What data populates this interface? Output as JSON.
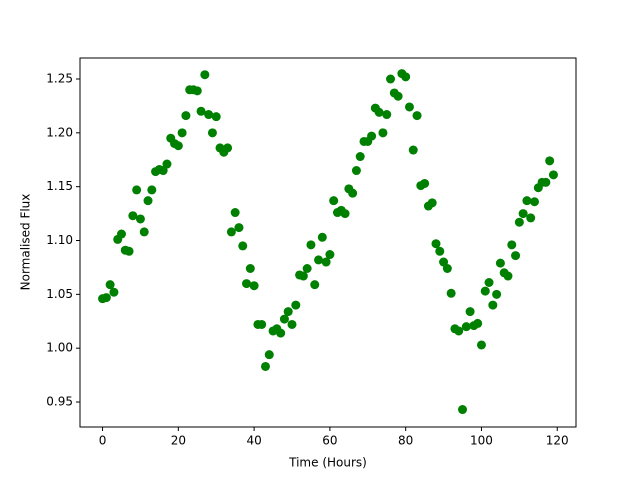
{
  "chart_data": {
    "type": "scatter",
    "x_label": "Time (Hours)",
    "y_label": "Normalised Flux",
    "x": [
      0,
      1,
      2,
      3,
      4,
      5,
      6,
      7,
      8,
      9,
      10,
      11,
      12,
      13,
      14,
      15,
      16,
      17,
      18,
      19,
      20,
      21,
      22,
      23,
      24,
      25,
      26,
      27,
      28,
      29,
      30,
      31,
      32,
      33,
      34,
      35,
      36,
      37,
      38,
      39,
      40,
      41,
      42,
      43,
      44,
      45,
      46,
      47,
      48,
      49,
      50,
      51,
      52,
      53,
      54,
      55,
      56,
      57,
      58,
      59,
      60,
      61,
      62,
      63,
      64,
      65,
      66,
      67,
      68,
      69,
      70,
      71,
      72,
      73,
      74,
      75,
      76,
      77,
      78,
      79,
      80,
      81,
      82,
      83,
      84,
      85,
      86,
      87,
      88,
      89,
      90,
      91,
      92,
      93,
      94,
      95,
      96,
      97,
      98,
      99,
      100,
      101,
      102,
      103,
      104,
      105,
      106,
      107,
      108,
      109,
      110,
      111,
      112,
      113,
      114,
      115,
      116,
      117,
      118,
      119
    ],
    "series": [
      {
        "color": "#008000",
        "values": [
          1.046,
          1.047,
          1.059,
          1.052,
          1.101,
          1.106,
          1.091,
          1.09,
          1.123,
          1.147,
          1.12,
          1.108,
          1.137,
          1.147,
          1.164,
          1.166,
          1.165,
          1.171,
          1.195,
          1.19,
          1.188,
          1.2,
          1.216,
          1.24,
          1.24,
          1.239,
          1.22,
          1.254,
          1.217,
          1.2,
          1.215,
          1.186,
          1.182,
          1.186,
          1.108,
          1.126,
          1.112,
          1.095,
          1.06,
          1.074,
          1.058,
          1.022,
          1.022,
          0.983,
          0.994,
          1.016,
          1.018,
          1.014,
          1.027,
          1.034,
          1.022,
          1.04,
          1.068,
          1.067,
          1.074,
          1.096,
          1.059,
          1.082,
          1.103,
          1.08,
          1.087,
          1.137,
          1.126,
          1.128,
          1.125,
          1.148,
          1.144,
          1.165,
          1.178,
          1.192,
          1.192,
          1.197,
          1.223,
          1.219,
          1.2,
          1.217,
          1.25,
          1.237,
          1.234,
          1.255,
          1.252,
          1.224,
          1.184,
          1.216,
          1.151,
          1.153,
          1.132,
          1.135,
          1.097,
          1.09,
          1.08,
          1.074,
          1.051,
          1.018,
          1.016,
          0.943,
          1.02,
          1.034,
          1.021,
          1.023,
          1.003,
          1.053,
          1.061,
          1.04,
          1.05,
          1.079,
          1.07,
          1.067,
          1.096,
          1.086,
          1.117,
          1.125,
          1.137,
          1.121,
          1.136,
          1.149,
          1.154,
          1.154,
          1.174,
          1.161
        ]
      }
    ],
    "xlim": [
      -5.95,
      124.95
    ],
    "ylim": [
      0.9268,
      1.2695
    ],
    "xticks": [
      0,
      20,
      40,
      60,
      80,
      100,
      120
    ],
    "yticks": [
      0.95,
      {
        "value": 1.0,
        "label": "1.00"
      },
      1.05,
      {
        "value": 1.1,
        "label": "1.10"
      },
      1.15,
      {
        "value": 1.2,
        "label": "1.20"
      },
      1.25
    ]
  }
}
